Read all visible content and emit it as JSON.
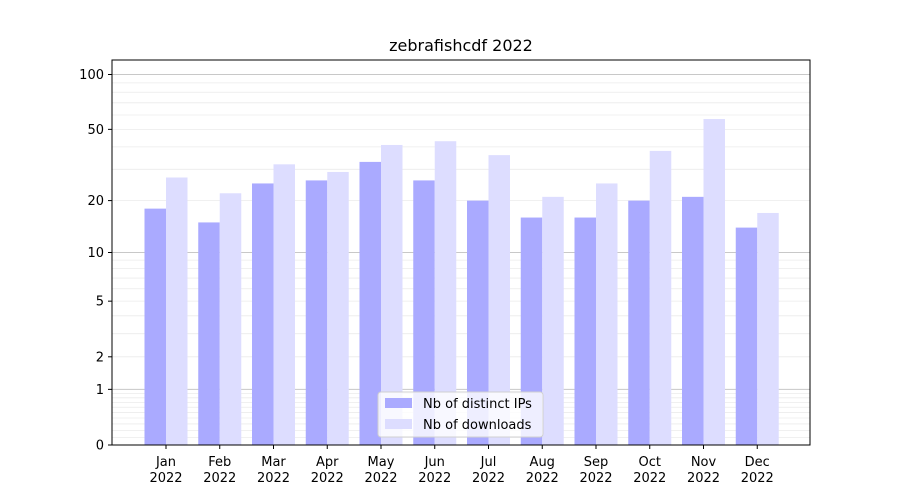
{
  "chart_data": {
    "type": "bar",
    "title": "zebrafishcdf 2022",
    "categories": [
      [
        "Jan",
        "2022"
      ],
      [
        "Feb",
        "2022"
      ],
      [
        "Mar",
        "2022"
      ],
      [
        "Apr",
        "2022"
      ],
      [
        "May",
        "2022"
      ],
      [
        "Jun",
        "2022"
      ],
      [
        "Jul",
        "2022"
      ],
      [
        "Aug",
        "2022"
      ],
      [
        "Sep",
        "2022"
      ],
      [
        "Oct",
        "2022"
      ],
      [
        "Nov",
        "2022"
      ],
      [
        "Dec",
        "2022"
      ]
    ],
    "series": [
      {
        "name": "Nb of distinct IPs",
        "color": "#aaaaff",
        "values": [
          18,
          15,
          25,
          26,
          33,
          26,
          20,
          16,
          16,
          20,
          21,
          14
        ]
      },
      {
        "name": "Nb of downloads",
        "color": "#ddddff",
        "values": [
          27,
          22,
          32,
          29,
          41,
          43,
          36,
          21,
          25,
          38,
          57,
          17
        ]
      }
    ],
    "yscale": "symlog",
    "yticks": [
      0,
      1,
      2,
      5,
      10,
      20,
      50,
      100
    ],
    "ylim": [
      0,
      120
    ],
    "xlabel": "",
    "ylabel": "",
    "grid": true,
    "legend_position": "bottom-center"
  }
}
